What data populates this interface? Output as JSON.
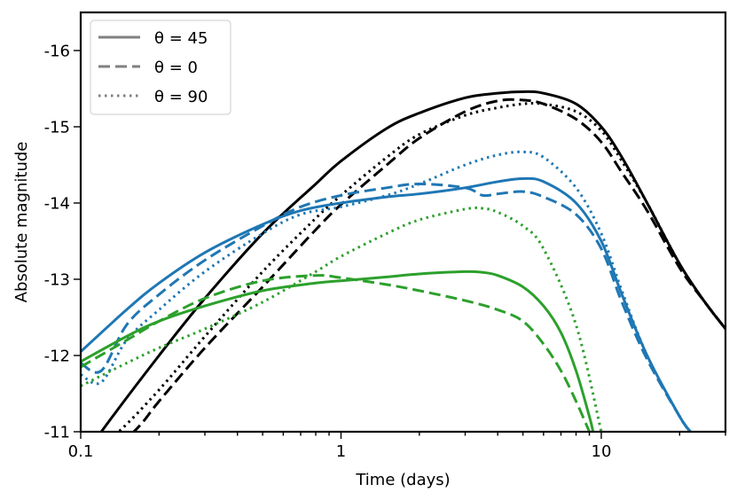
{
  "chart_data": {
    "type": "line",
    "title": "",
    "xlabel": "Time (days)",
    "ylabel": "Absolute magnitude",
    "x_scale": "log",
    "xlim": [
      0.1,
      30
    ],
    "ylim": [
      -11,
      -16.5
    ],
    "y_inverted": true,
    "x_ticks": [
      {
        "value": 0.1,
        "label": "0.1"
      },
      {
        "value": 1,
        "label": "1"
      },
      {
        "value": 10,
        "label": "10"
      }
    ],
    "y_ticks": [
      {
        "value": -16,
        "label": "-16"
      },
      {
        "value": -15,
        "label": "-15"
      },
      {
        "value": -14,
        "label": "-14"
      },
      {
        "value": -13,
        "label": "-13"
      },
      {
        "value": -12,
        "label": "-12"
      },
      {
        "value": -11,
        "label": "-11"
      }
    ],
    "grid": false,
    "legend_position": "top-left",
    "legend": [
      {
        "label": "θ = 45",
        "style": "solid"
      },
      {
        "label": "θ = 0",
        "style": "dashed"
      },
      {
        "label": "θ = 90",
        "style": "dotted"
      }
    ],
    "colors": {
      "black": "#000000",
      "blue": "#1f77b4",
      "green": "#2ca02c",
      "legend_gray": "#808080"
    },
    "series": [
      {
        "color": "black",
        "style": "solid",
        "x": [
          0.1,
          0.12,
          0.2,
          0.3,
          0.5,
          0.8,
          1,
          1.5,
          2,
          3,
          4,
          5,
          6,
          8,
          10,
          12,
          15,
          20,
          25,
          30
        ],
        "y": [
          -10.6,
          -11.0,
          -12.0,
          -12.75,
          -13.6,
          -14.25,
          -14.55,
          -14.98,
          -15.18,
          -15.38,
          -15.44,
          -15.46,
          -15.44,
          -15.3,
          -15.0,
          -14.6,
          -14.0,
          -13.2,
          -12.7,
          -12.35
        ]
      },
      {
        "color": "black",
        "style": "dashed",
        "x": [
          0.1,
          0.16,
          0.2,
          0.3,
          0.5,
          0.8,
          1,
          1.5,
          2,
          3,
          4,
          5,
          6,
          8,
          10,
          12,
          15,
          20,
          25,
          30
        ],
        "y": [
          -10.4,
          -11.0,
          -11.4,
          -12.1,
          -12.9,
          -13.65,
          -13.98,
          -14.5,
          -14.85,
          -15.2,
          -15.34,
          -15.35,
          -15.3,
          -15.1,
          -14.8,
          -14.4,
          -13.9,
          -13.15,
          -12.7,
          -12.35
        ]
      },
      {
        "color": "black",
        "style": "dotted",
        "x": [
          0.1,
          0.14,
          0.2,
          0.3,
          0.5,
          0.8,
          1,
          1.5,
          2,
          3,
          4,
          5,
          6,
          8,
          10,
          12,
          15,
          20,
          25,
          30
        ],
        "y": [
          -10.6,
          -11.0,
          -11.55,
          -12.25,
          -13.1,
          -13.8,
          -14.1,
          -14.6,
          -14.9,
          -15.15,
          -15.25,
          -15.3,
          -15.3,
          -15.2,
          -14.95,
          -14.55,
          -14.0,
          -13.2,
          -12.7,
          -12.35
        ]
      },
      {
        "color": "blue",
        "style": "solid",
        "x": [
          0.1,
          0.15,
          0.2,
          0.3,
          0.5,
          0.7,
          1,
          1.5,
          2,
          3,
          4,
          5,
          6,
          8,
          10,
          12,
          15,
          20,
          22
        ],
        "y": [
          -12.05,
          -12.6,
          -12.95,
          -13.35,
          -13.72,
          -13.9,
          -14.0,
          -14.08,
          -14.12,
          -14.2,
          -14.28,
          -14.32,
          -14.28,
          -14.0,
          -13.5,
          -12.8,
          -12.0,
          -11.2,
          -11.0
        ]
      },
      {
        "color": "blue",
        "style": "dashed",
        "x": [
          0.1,
          0.12,
          0.15,
          0.2,
          0.3,
          0.5,
          0.7,
          1,
          1.5,
          2,
          3,
          3.5,
          4,
          5,
          6,
          8,
          10,
          12,
          15,
          20,
          22
        ],
        "y": [
          -11.9,
          -11.8,
          -12.4,
          -12.8,
          -13.25,
          -13.7,
          -13.95,
          -14.1,
          -14.2,
          -14.25,
          -14.2,
          -14.1,
          -14.12,
          -14.15,
          -14.08,
          -13.85,
          -13.4,
          -12.7,
          -11.95,
          -11.2,
          -11.0
        ]
      },
      {
        "color": "blue",
        "style": "dotted",
        "x": [
          0.1,
          0.12,
          0.15,
          0.2,
          0.3,
          0.5,
          0.7,
          1,
          1.5,
          2,
          3,
          4,
          5,
          6,
          8,
          10,
          12,
          15,
          20,
          22
        ],
        "y": [
          -11.75,
          -11.65,
          -12.2,
          -12.6,
          -13.1,
          -13.6,
          -13.85,
          -13.95,
          -14.1,
          -14.25,
          -14.5,
          -14.63,
          -14.67,
          -14.6,
          -14.2,
          -13.6,
          -12.85,
          -12.0,
          -11.2,
          -11.0
        ]
      },
      {
        "color": "green",
        "style": "solid",
        "x": [
          0.1,
          0.15,
          0.2,
          0.3,
          0.5,
          0.8,
          1,
          1.5,
          2,
          3,
          3.5,
          4,
          5,
          6,
          7,
          8,
          9,
          9.3
        ],
        "y": [
          -11.92,
          -12.25,
          -12.45,
          -12.65,
          -12.85,
          -12.95,
          -12.98,
          -13.03,
          -13.07,
          -13.1,
          -13.09,
          -13.05,
          -12.9,
          -12.65,
          -12.3,
          -11.8,
          -11.2,
          -11.0
        ]
      },
      {
        "color": "green",
        "style": "dashed",
        "x": [
          0.1,
          0.15,
          0.2,
          0.3,
          0.5,
          0.8,
          1,
          1.5,
          2,
          3,
          4,
          5,
          6,
          7,
          8,
          9
        ],
        "y": [
          -11.85,
          -12.2,
          -12.45,
          -12.75,
          -12.98,
          -13.05,
          -13.02,
          -12.93,
          -12.85,
          -12.72,
          -12.6,
          -12.45,
          -12.15,
          -11.8,
          -11.4,
          -11.0
        ]
      },
      {
        "color": "green",
        "style": "dotted",
        "x": [
          0.1,
          0.15,
          0.2,
          0.3,
          0.5,
          0.8,
          1,
          1.5,
          2,
          3,
          3.5,
          4,
          5,
          6,
          8,
          10
        ],
        "y": [
          -11.6,
          -11.9,
          -12.1,
          -12.35,
          -12.7,
          -13.1,
          -13.3,
          -13.6,
          -13.78,
          -13.92,
          -13.93,
          -13.88,
          -13.7,
          -13.4,
          -12.4,
          -11.0
        ]
      }
    ]
  }
}
